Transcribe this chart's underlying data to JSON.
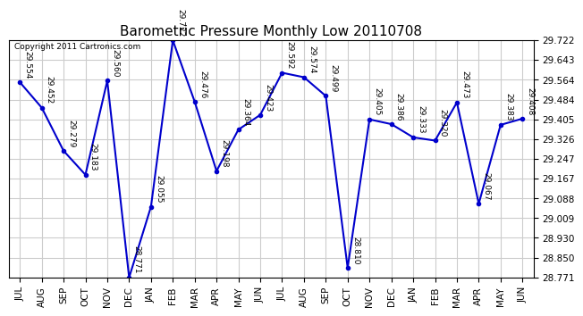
{
  "title": "Barometric Pressure Monthly Low 20110708",
  "copyright": "Copyright 2011 Cartronics.com",
  "months": [
    "JUL",
    "AUG",
    "SEP",
    "OCT",
    "NOV",
    "DEC",
    "JAN",
    "FEB",
    "MAR",
    "APR",
    "MAY",
    "JUN",
    "JUL",
    "AUG",
    "SEP",
    "OCT",
    "NOV",
    "DEC",
    "JAN",
    "FEB",
    "MAR",
    "APR",
    "MAY",
    "JUN"
  ],
  "values": [
    29.554,
    29.452,
    29.279,
    29.183,
    29.56,
    28.771,
    29.055,
    29.722,
    29.476,
    29.198,
    29.364,
    29.423,
    29.592,
    29.574,
    29.499,
    28.81,
    29.405,
    29.386,
    29.333,
    29.32,
    29.473,
    29.067,
    29.383,
    29.408
  ],
  "ylim_min": 28.771,
  "ylim_max": 29.722,
  "yticks": [
    28.771,
    28.85,
    28.93,
    29.009,
    29.088,
    29.167,
    29.247,
    29.326,
    29.405,
    29.484,
    29.564,
    29.643,
    29.722
  ],
  "line_color": "#0000cc",
  "marker_color": "#0000cc",
  "bg_color": "#ffffff",
  "grid_color": "#cccccc",
  "title_fontsize": 11,
  "label_fontsize": 6.5,
  "tick_fontsize": 7.5,
  "copyright_fontsize": 6.5
}
